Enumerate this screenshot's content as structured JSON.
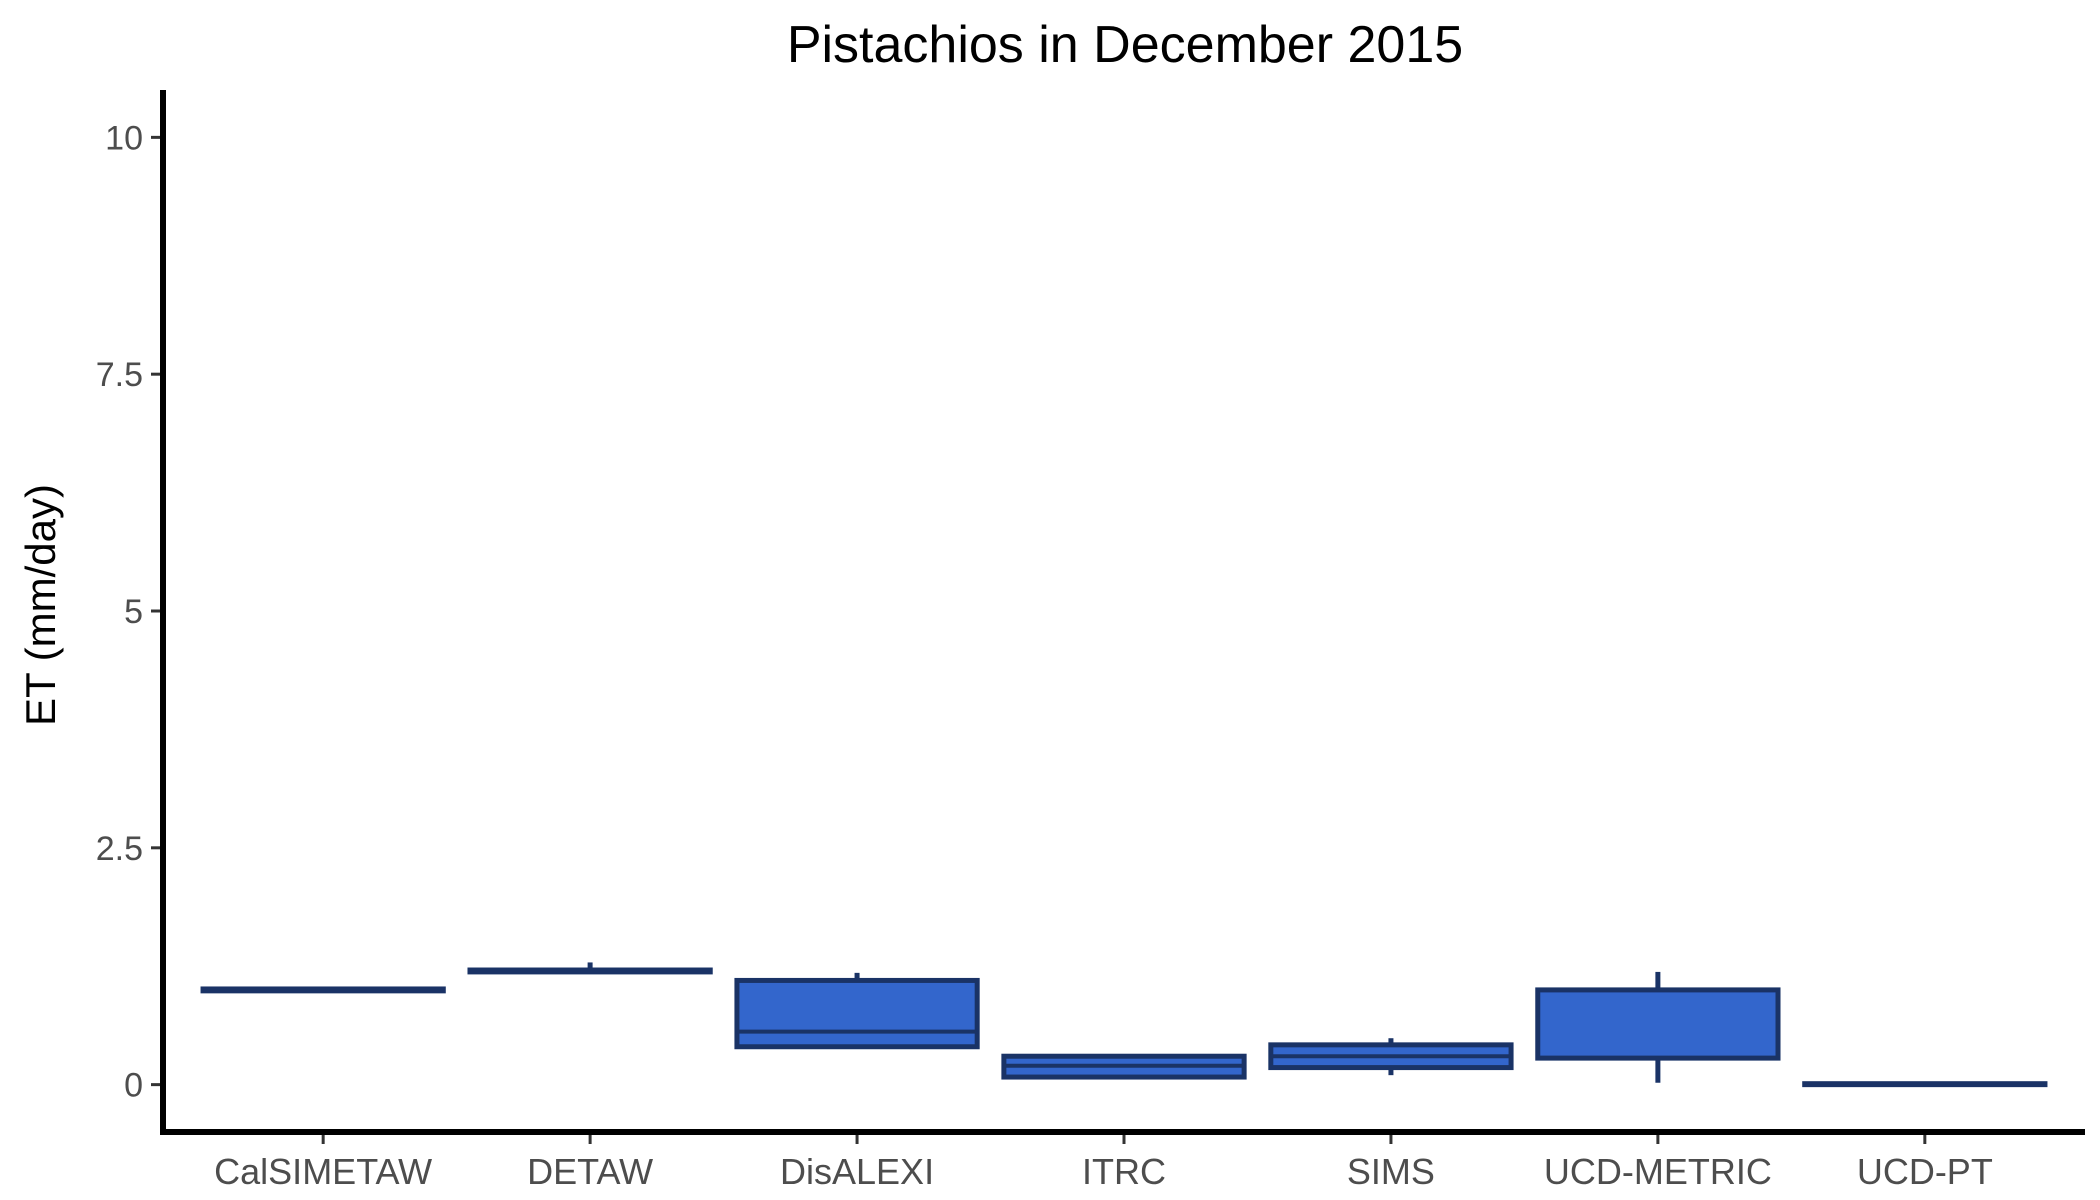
{
  "chart_data": {
    "type": "boxplot",
    "title": "Pistachios in December 2015",
    "xlabel": "",
    "ylabel": "ET (mm/day)",
    "ylim": [
      -0.5,
      10.5
    ],
    "yticks": [
      0,
      2.5,
      5,
      7.5,
      10
    ],
    "ytick_labels": [
      "0",
      "2.5",
      "5",
      "7.5",
      "10"
    ],
    "grid": false,
    "legend": "none",
    "fill_color": "#3366cc",
    "stroke_color": "#1a3366",
    "categories": [
      "CalSIMETAW",
      "DETAW",
      "DisALEXI",
      "ITRC",
      "SIMS",
      "UCD-METRIC",
      "UCD-PT"
    ],
    "boxes": [
      {
        "category": "CalSIMETAW",
        "min": 0.99,
        "q1": 0.99,
        "median": 1.0,
        "q3": 1.01,
        "max": 1.01
      },
      {
        "category": "DETAW",
        "min": 1.19,
        "q1": 1.19,
        "median": 1.2,
        "q3": 1.21,
        "max": 1.29
      },
      {
        "category": "DisALEXI",
        "min": 0.4,
        "q1": 0.4,
        "median": 0.56,
        "q3": 1.1,
        "max": 1.18
      },
      {
        "category": "ITRC",
        "min": 0.08,
        "q1": 0.08,
        "median": 0.2,
        "q3": 0.3,
        "max": 0.3
      },
      {
        "category": "SIMS",
        "min": 0.1,
        "q1": 0.18,
        "median": 0.3,
        "q3": 0.42,
        "max": 0.49
      },
      {
        "category": "UCD-METRIC",
        "min": 0.02,
        "q1": 0.28,
        "median": 1.0,
        "q3": 1.0,
        "max": 1.19
      },
      {
        "category": "UCD-PT",
        "min": 0.0,
        "q1": 0.0,
        "median": 0.0,
        "q3": 0.01,
        "max": 0.01
      }
    ]
  }
}
